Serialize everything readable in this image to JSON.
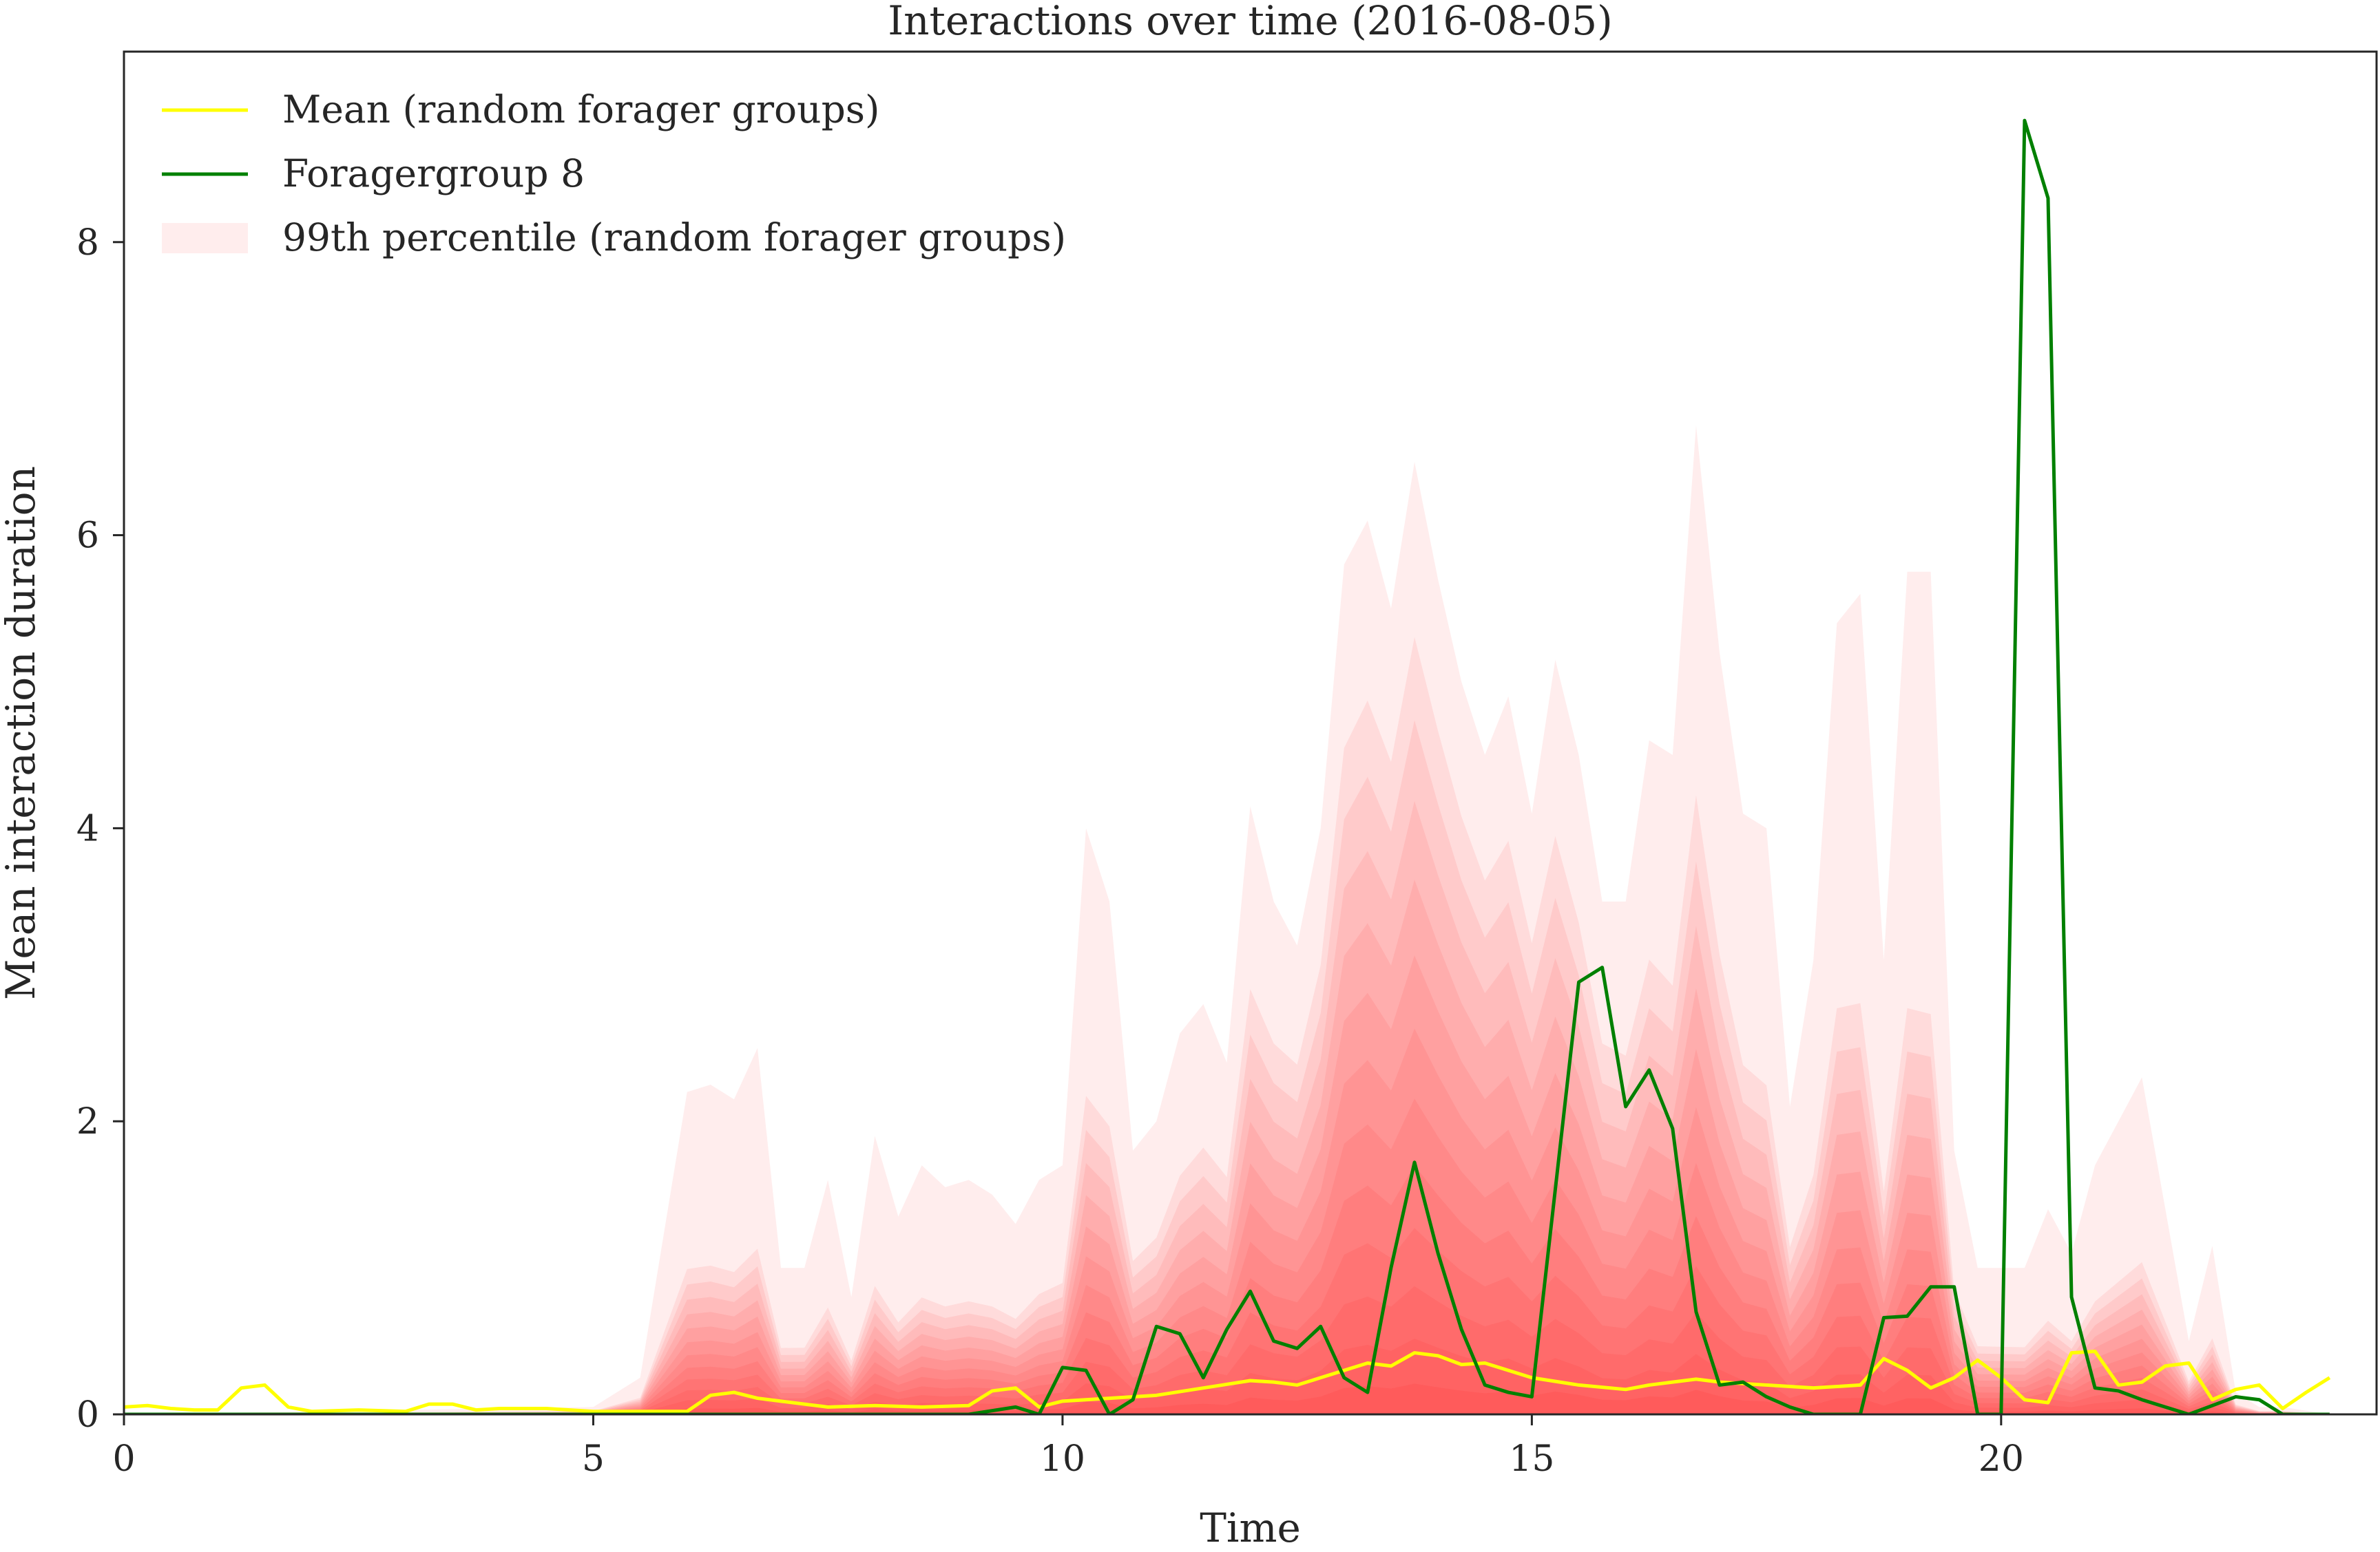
{
  "chart_data": {
    "type": "line",
    "title": "Interactions over time (2016-08-05)",
    "xlabel": "Time",
    "ylabel": "Mean interaction duration",
    "xlim": [
      0,
      24
    ],
    "ylim": [
      0,
      9.3
    ],
    "xticks": [
      0,
      5,
      10,
      15,
      20
    ],
    "yticks": [
      0,
      2,
      4,
      6,
      8
    ],
    "grid": false,
    "legend_position": "top-left",
    "colors": {
      "mean": "#ffff00",
      "forager": "#008000",
      "band": "#ff0000",
      "axis": "#262626"
    },
    "series": [
      {
        "name": "Mean (random forager groups)",
        "kind": "line",
        "color": "#ffff00",
        "x": [
          0,
          0.25,
          0.5,
          0.75,
          1.0,
          1.25,
          1.5,
          1.75,
          2.0,
          2.5,
          3.0,
          3.25,
          3.5,
          3.75,
          4.0,
          4.5,
          5.0,
          5.5,
          6.0,
          6.25,
          6.5,
          6.75,
          7.0,
          7.5,
          8.0,
          8.5,
          9.0,
          9.25,
          9.5,
          9.75,
          10.0,
          10.5,
          11.0,
          11.5,
          12.0,
          12.25,
          12.5,
          12.75,
          13.0,
          13.25,
          13.5,
          13.75,
          14.0,
          14.25,
          14.5,
          14.75,
          15.0,
          15.5,
          16.0,
          16.25,
          16.5,
          16.75,
          17.0,
          17.5,
          18.0,
          18.5,
          18.75,
          19.0,
          19.25,
          19.5,
          19.75,
          20.0,
          20.25,
          20.5,
          20.75,
          21.0,
          21.25,
          21.5,
          21.75,
          22.0,
          22.25,
          22.5,
          22.75,
          23.0,
          23.25,
          23.5
        ],
        "values": [
          0.05,
          0.06,
          0.04,
          0.03,
          0.03,
          0.18,
          0.2,
          0.05,
          0.02,
          0.03,
          0.02,
          0.07,
          0.07,
          0.03,
          0.04,
          0.04,
          0.02,
          0.02,
          0.02,
          0.13,
          0.15,
          0.11,
          0.09,
          0.05,
          0.06,
          0.05,
          0.06,
          0.16,
          0.18,
          0.05,
          0.09,
          0.11,
          0.13,
          0.18,
          0.23,
          0.22,
          0.2,
          0.25,
          0.3,
          0.35,
          0.33,
          0.42,
          0.4,
          0.34,
          0.35,
          0.3,
          0.25,
          0.2,
          0.17,
          0.2,
          0.22,
          0.24,
          0.22,
          0.2,
          0.18,
          0.2,
          0.38,
          0.3,
          0.18,
          0.25,
          0.37,
          0.25,
          0.1,
          0.08,
          0.42,
          0.43,
          0.2,
          0.22,
          0.33,
          0.35,
          0.1,
          0.17,
          0.2,
          0.04,
          0.15,
          0.25
        ]
      },
      {
        "name": "Foragergroup 8",
        "kind": "line",
        "color": "#008000",
        "x": [
          0,
          9.0,
          9.5,
          9.75,
          10.0,
          10.25,
          10.5,
          10.75,
          11.0,
          11.25,
          11.5,
          11.75,
          12.0,
          12.25,
          12.5,
          12.75,
          13.0,
          13.25,
          13.5,
          13.75,
          14.0,
          14.25,
          14.5,
          14.75,
          15.0,
          15.5,
          15.75,
          16.0,
          16.25,
          16.5,
          16.75,
          17.0,
          17.25,
          17.5,
          17.75,
          18.0,
          18.5,
          18.75,
          19.0,
          19.25,
          19.5,
          19.75,
          20.0,
          20.25,
          20.5,
          20.75,
          21.0,
          21.25,
          21.5,
          21.75,
          22.0,
          22.5,
          22.75,
          23.0,
          23.5
        ],
        "values": [
          0,
          0.0,
          0.05,
          0.0,
          0.32,
          0.3,
          0.0,
          0.1,
          0.6,
          0.55,
          0.25,
          0.58,
          0.84,
          0.5,
          0.45,
          0.6,
          0.25,
          0.15,
          1.0,
          1.72,
          1.1,
          0.58,
          0.2,
          0.15,
          0.12,
          2.95,
          3.05,
          2.1,
          2.35,
          1.95,
          0.7,
          0.2,
          0.22,
          0.12,
          0.05,
          0.0,
          0.0,
          0.66,
          0.67,
          0.87,
          0.87,
          0.0,
          0.0,
          8.83,
          8.3,
          0.8,
          0.18,
          0.16,
          0.1,
          0.05,
          0.0,
          0.12,
          0.1,
          0.0,
          0.0
        ]
      },
      {
        "name": "99th percentile (random forager groups)",
        "kind": "band",
        "color": "#ff0000",
        "x": [
          0,
          5.0,
          5.5,
          6.0,
          6.25,
          6.5,
          6.75,
          7.0,
          7.25,
          7.5,
          7.75,
          8.0,
          8.25,
          8.5,
          8.75,
          9.0,
          9.25,
          9.5,
          9.75,
          10.0,
          10.25,
          10.5,
          10.75,
          11.0,
          11.25,
          11.5,
          11.75,
          12.0,
          12.25,
          12.5,
          12.75,
          13.0,
          13.25,
          13.5,
          13.75,
          14.0,
          14.25,
          14.5,
          14.75,
          15.0,
          15.25,
          15.5,
          15.75,
          16.0,
          16.25,
          16.5,
          16.75,
          17.0,
          17.25,
          17.5,
          17.75,
          18.0,
          18.25,
          18.5,
          18.75,
          19.0,
          19.25,
          19.5,
          19.75,
          20.0,
          20.25,
          20.5,
          20.75,
          21.0,
          21.25,
          21.5,
          21.75,
          22.0,
          22.25,
          22.5,
          22.75,
          23.0,
          23.5
        ],
        "values": [
          0,
          0.05,
          0.25,
          2.2,
          2.25,
          2.15,
          2.5,
          1.0,
          1.0,
          1.6,
          0.8,
          1.9,
          1.35,
          1.7,
          1.55,
          1.6,
          1.5,
          1.3,
          1.6,
          1.7,
          4.0,
          3.5,
          1.8,
          2.0,
          2.6,
          2.8,
          2.4,
          4.15,
          3.5,
          3.2,
          4.0,
          5.8,
          6.1,
          5.5,
          6.5,
          5.7,
          5.0,
          4.5,
          4.9,
          4.1,
          5.15,
          4.5,
          3.5,
          3.5,
          4.6,
          4.5,
          6.75,
          5.2,
          4.1,
          4.0,
          2.1,
          3.1,
          5.4,
          5.6,
          3.1,
          5.75,
          5.75,
          1.8,
          1.0,
          1.0,
          1.0,
          1.4,
          1.1,
          1.7,
          2.0,
          2.3,
          1.4,
          0.5,
          1.15,
          0.15,
          0.05,
          0.05,
          0.0
        ]
      }
    ]
  }
}
